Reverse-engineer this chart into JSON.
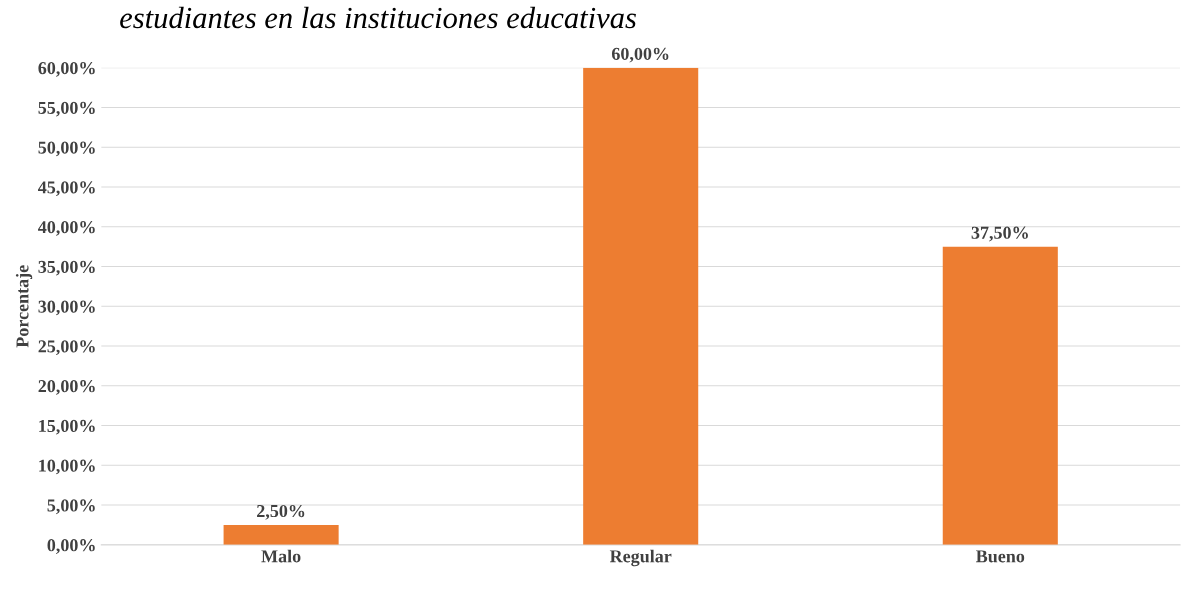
{
  "chart_data": {
    "type": "bar",
    "title": "estudiantes en las instituciones educativas",
    "ylabel": "Porcentaje",
    "categories": [
      "Malo",
      "Regular",
      "Bueno"
    ],
    "values": [
      2.5,
      60,
      37.5
    ],
    "color": "#ed7d31",
    "value_labels": [
      "2,50%",
      "60,00%",
      "37,50%"
    ],
    "ylim": [
      0,
      60
    ],
    "yticks": [
      {
        "value": 0,
        "label": "0,00%"
      },
      {
        "value": 5,
        "label": "5,00%"
      },
      {
        "value": 10,
        "label": "10,00%"
      },
      {
        "value": 15,
        "label": "15,00%"
      },
      {
        "value": 20,
        "label": "20,00%"
      },
      {
        "value": 25,
        "label": "25,00%"
      },
      {
        "value": 30,
        "label": "30,00%"
      },
      {
        "value": 35,
        "label": "35,00%"
      },
      {
        "value": 40,
        "label": "40,00%"
      },
      {
        "value": 45,
        "label": "45,00%"
      },
      {
        "value": 50,
        "label": "50,00%"
      },
      {
        "value": 55,
        "label": "55,00%"
      },
      {
        "value": 60,
        "label": "60,00%"
      }
    ],
    "grid": "y",
    "legend": false
  }
}
